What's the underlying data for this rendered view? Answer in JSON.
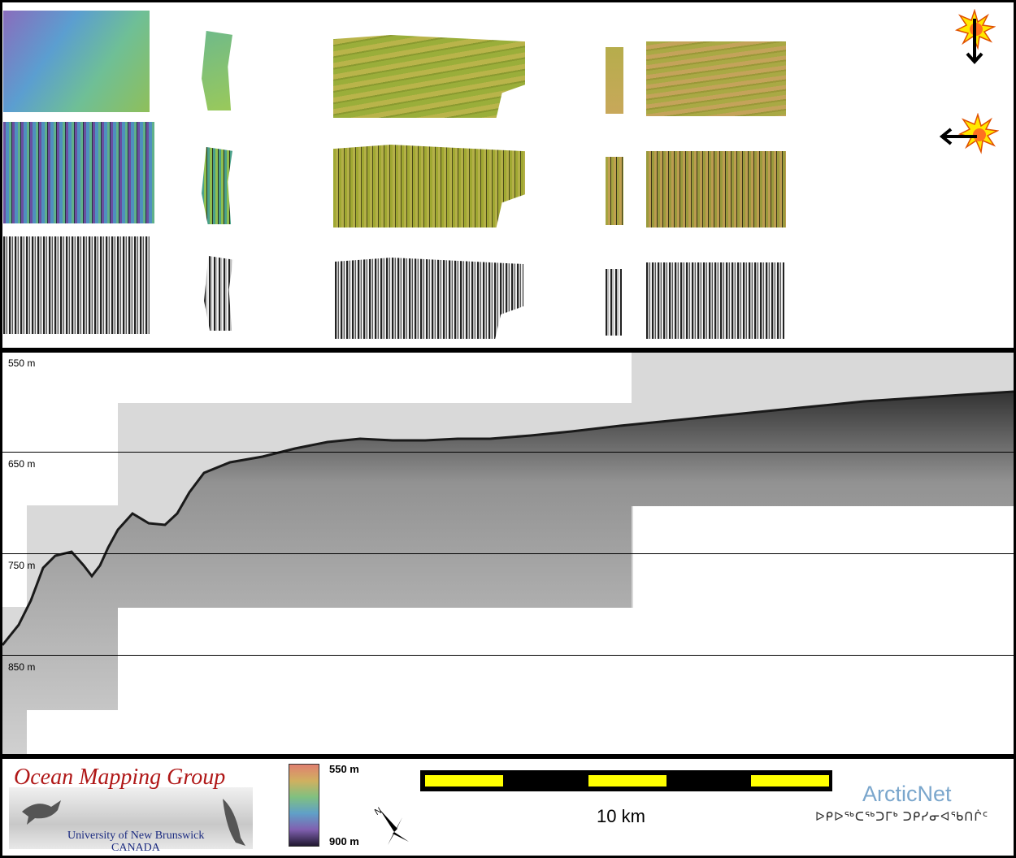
{
  "top_panel": {
    "tiles": [
      {
        "name": "shaded-relief-north-tile-1",
        "colors": [
          "#7a60b0",
          "#5aa0c8",
          "#70c090",
          "#8fbf5a"
        ]
      },
      {
        "name": "shaded-relief-north-tile-2",
        "colors": [
          "#6fba8a",
          "#9ac95a"
        ]
      },
      {
        "name": "shaded-relief-north-tile-3",
        "colors": [
          "#9aae3a",
          "#b9b44a"
        ]
      },
      {
        "name": "shaded-relief-north-tile-4",
        "colors": [
          "#b6ad4c",
          "#c8a85a"
        ]
      },
      {
        "name": "shaded-relief-north-tile-5",
        "colors": [
          "#a9a944",
          "#c4a35a"
        ]
      },
      {
        "name": "shaded-relief-west-tile-1",
        "colors": [
          "#6a4fa0",
          "#4f8fbf",
          "#5fb08a"
        ]
      },
      {
        "name": "shaded-relief-west-tile-2",
        "colors": [
          "#4aa08a",
          "#8fbf50"
        ]
      },
      {
        "name": "shaded-relief-west-tile-3",
        "colors": [
          "#a0a832",
          "#b4b048"
        ]
      },
      {
        "name": "shaded-relief-west-tile-4",
        "colors": [
          "#a6a440",
          "#c0a050"
        ]
      },
      {
        "name": "shaded-relief-west-tile-5",
        "colors": [
          "#9a9a3c",
          "#bc9c50"
        ]
      },
      {
        "name": "backscatter-tile-1",
        "colors": [
          "#444",
          "#aaa"
        ]
      },
      {
        "name": "backscatter-tile-2",
        "colors": [
          "#444",
          "#aaa"
        ]
      },
      {
        "name": "backscatter-tile-3",
        "colors": [
          "#444",
          "#aaa"
        ]
      },
      {
        "name": "backscatter-tile-4",
        "colors": [
          "#444",
          "#aaa"
        ]
      },
      {
        "name": "backscatter-tile-5",
        "colors": [
          "#444",
          "#aaa"
        ]
      }
    ],
    "illumination": [
      {
        "name": "sun-illumination-north-icon",
        "direction": "down"
      },
      {
        "name": "sun-illumination-west-icon",
        "direction": "left"
      }
    ]
  },
  "profile": {
    "depth_labels": [
      "550 m",
      "650 m",
      "750 m",
      "850 m"
    ],
    "seafloor_color": "#222222",
    "background_color": "#d9d9d9"
  },
  "legend": {
    "logo_title": "Ocean Mapping Group",
    "logo_university": "University of New Brunswick",
    "logo_country": "CANADA",
    "colorbar_top_label": "550 m",
    "colorbar_bottom_label": "900 m",
    "colorbar_colors": [
      "#e08070",
      "#d0b060",
      "#80c080",
      "#60a0c8",
      "#8060b0",
      "#201830"
    ],
    "scale_label": "10 km",
    "scale_colors": {
      "dark": "#000000",
      "light": "#ffff00"
    },
    "partner_name": "ArcticNet",
    "partner_syllabics": "ᐅᑭᐅᖅᑕᖅᑐᒥᒃ ᑐᑭᓯᓂᐊᖃᑎᒌᑦ"
  }
}
